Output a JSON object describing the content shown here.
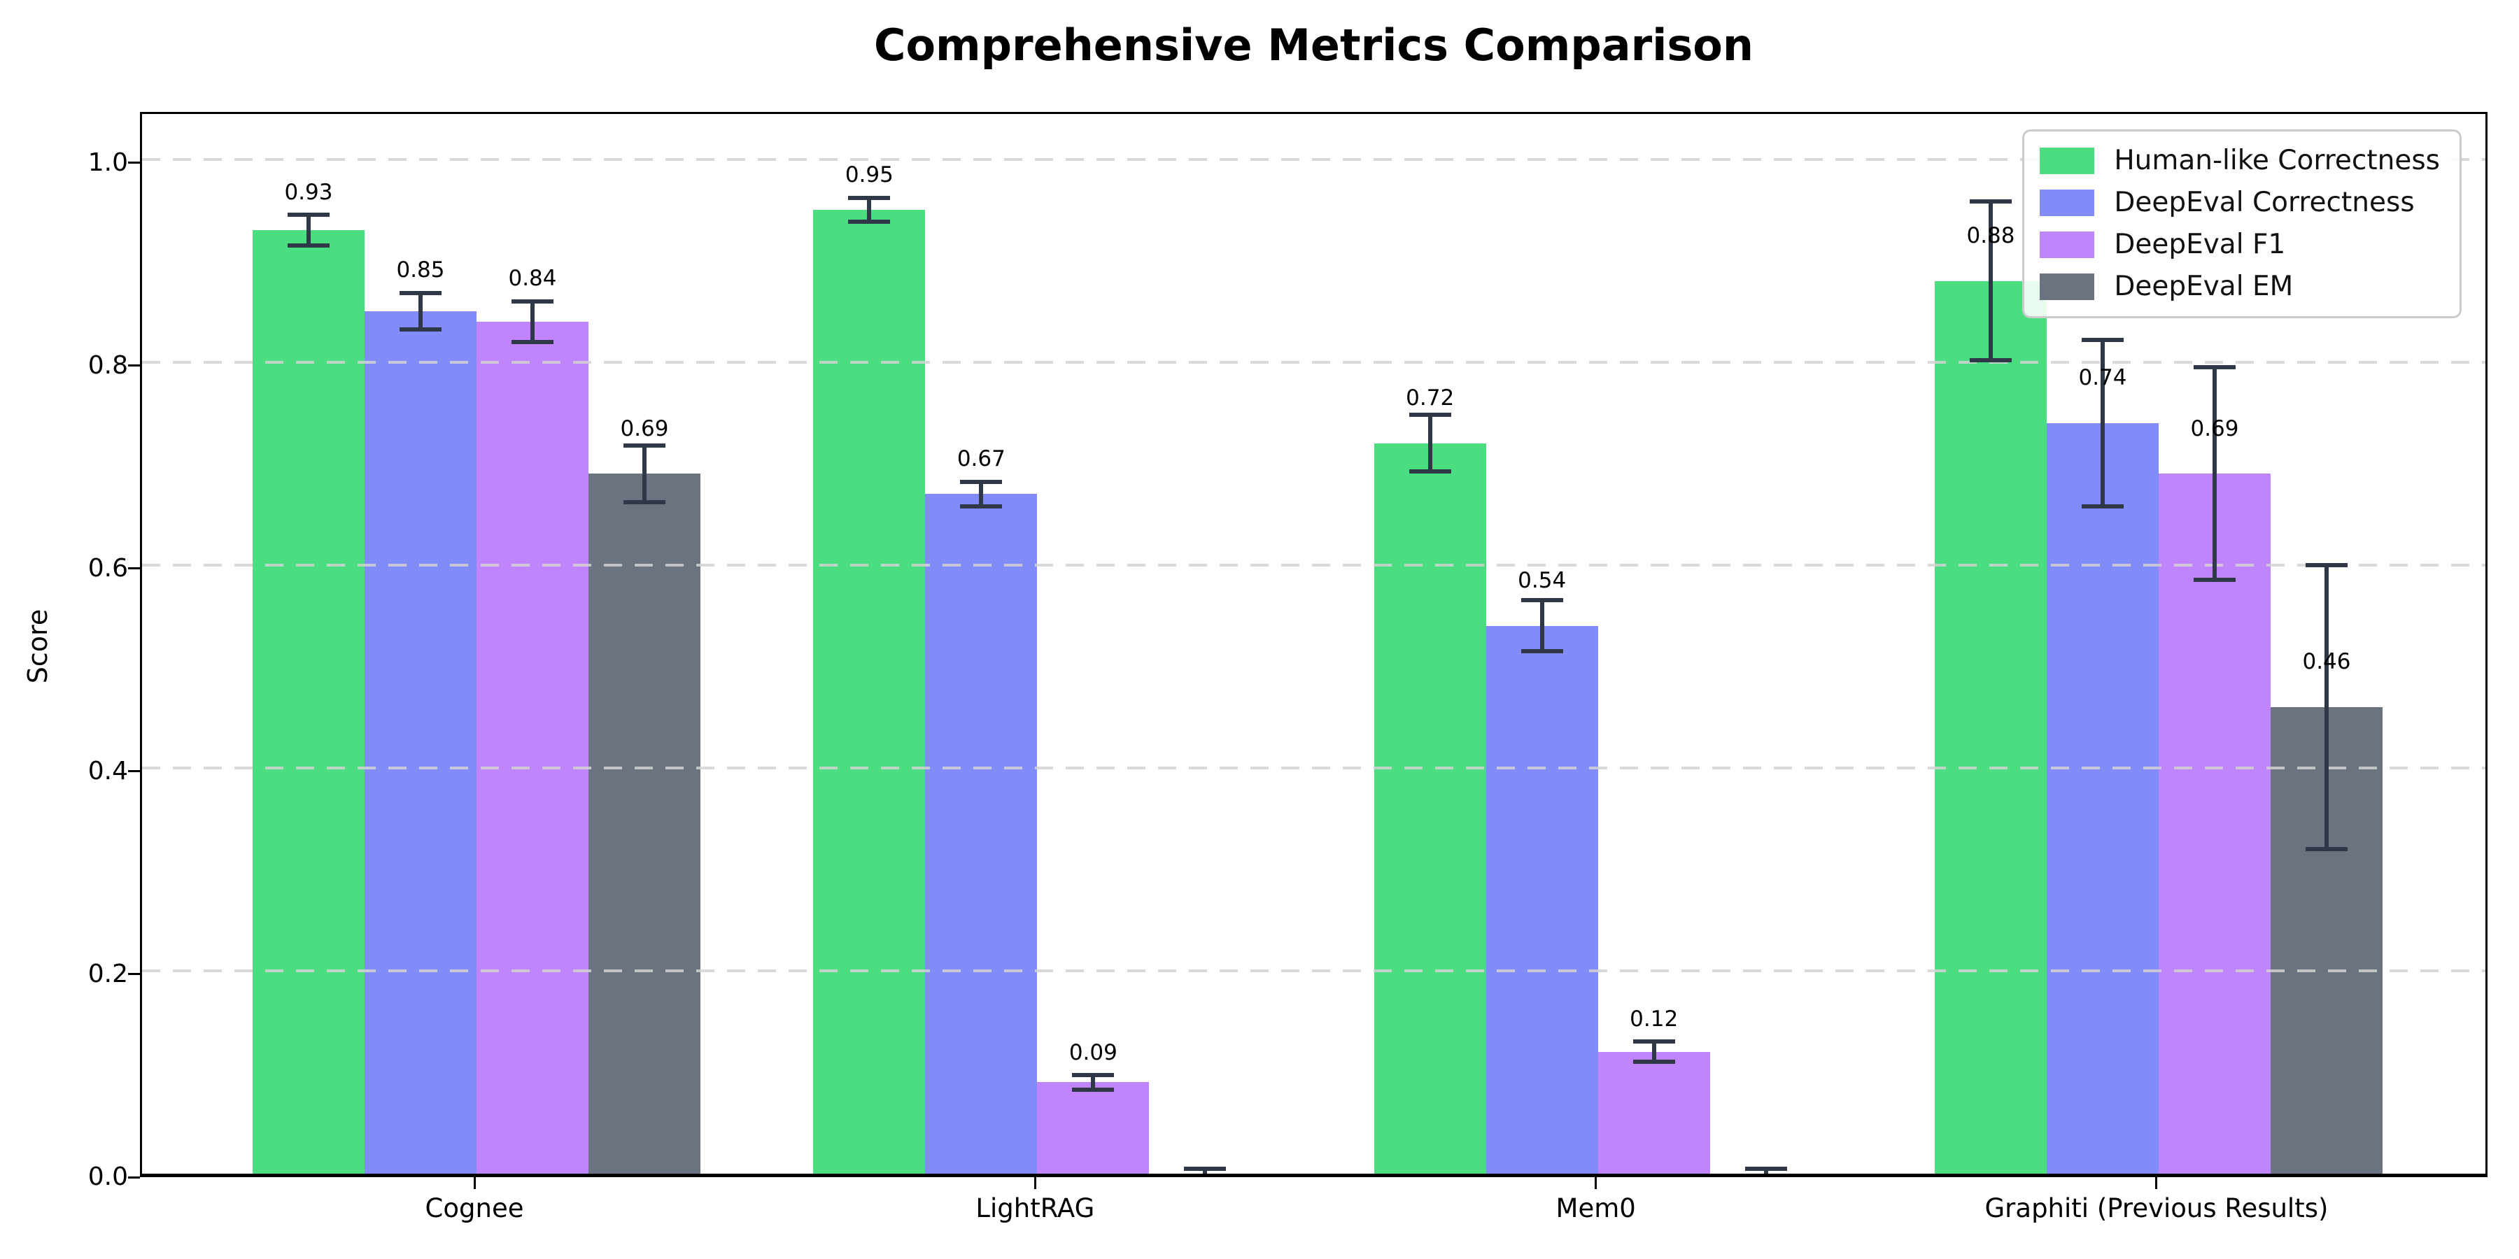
{
  "chart_data": {
    "type": "bar",
    "title": "Comprehensive Metrics Comparison",
    "xlabel": "",
    "ylabel": "Score",
    "categories": [
      "Cognee",
      "LightRAG",
      "Mem0",
      "Graphiti (Previous Results)"
    ],
    "series": [
      {
        "name": "Human-like Correctness",
        "color": "#4ade80",
        "values": [
          0.93,
          0.95,
          0.72,
          0.88
        ],
        "errors": [
          0.015,
          0.012,
          0.028,
          0.078
        ],
        "labels": [
          "0.93",
          "0.95",
          "0.72",
          "0.88"
        ]
      },
      {
        "name": "DeepEval Correctness",
        "color": "#818cf8",
        "values": [
          0.85,
          0.67,
          0.54,
          0.74
        ],
        "errors": [
          0.018,
          0.012,
          0.025,
          0.082
        ],
        "labels": [
          "0.85",
          "0.67",
          "0.54",
          "0.74"
        ]
      },
      {
        "name": "DeepEval F1",
        "color": "#c084fc",
        "values": [
          0.84,
          0.09,
          0.12,
          0.69
        ],
        "errors": [
          0.02,
          0.007,
          0.01,
          0.105
        ],
        "labels": [
          "0.84",
          "0.09",
          "0.12",
          "0.69"
        ]
      },
      {
        "name": "DeepEval EM",
        "color": "#6b7280",
        "values": [
          0.69,
          0.0,
          0.0,
          0.46
        ],
        "errors": [
          0.028,
          0.005,
          0.005,
          0.14
        ],
        "labels": [
          "0.69",
          null,
          null,
          "0.46"
        ]
      }
    ],
    "ylim": [
      0,
      1.05
    ],
    "yticks": [
      0.0,
      0.2,
      0.4,
      0.6,
      0.8,
      1.0
    ],
    "ytick_labels": [
      "0.0",
      "0.2",
      "0.4",
      "0.6",
      "0.8",
      "1.0"
    ],
    "grid": "horizontal-dashed",
    "legend_position": "upper-right",
    "error_bar_color": "#2f3847"
  }
}
